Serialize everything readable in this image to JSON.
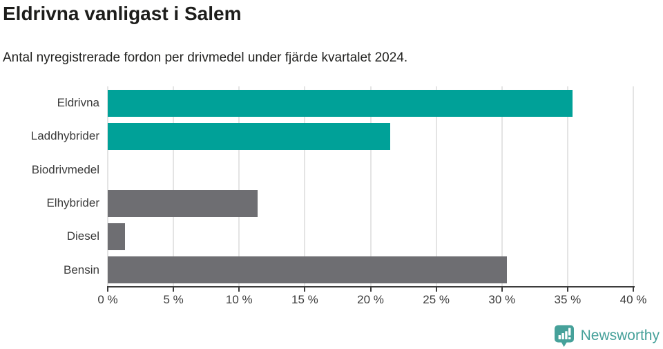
{
  "header": {
    "title": "Eldrivna vanligast i Salem",
    "subtitle": "Antal nyregistrerade fordon per drivmedel under fjärde kvartalet 2024."
  },
  "chart_data": {
    "type": "bar",
    "orientation": "horizontal",
    "title": "Eldrivna vanligast i Salem",
    "subtitle": "Antal nyregistrerade fordon per drivmedel under fjärde kvartalet 2024.",
    "categories": [
      "Eldrivna",
      "Laddhybrider",
      "Biodrivmedel",
      "Elhybrider",
      "Diesel",
      "Bensin"
    ],
    "values": [
      35.4,
      21.5,
      0,
      11.4,
      1.3,
      30.4
    ],
    "unit": "%",
    "bar_colors": [
      "#00a198",
      "#00a198",
      "#00a198",
      "#6e6e72",
      "#6e6e72",
      "#6e6e72"
    ],
    "xlim": [
      0,
      40
    ],
    "x_ticks": [
      0,
      5,
      10,
      15,
      20,
      25,
      30,
      35,
      40
    ],
    "x_tick_labels": [
      "0 %",
      "5 %",
      "10 %",
      "15 %",
      "20 %",
      "25 %",
      "30 %",
      "35 %",
      "40 %"
    ],
    "grid": "vertical",
    "legend": "none",
    "colors": {
      "accent_teal": "#00a198",
      "neutral_gray": "#6e6e72",
      "gridline": "#e4e4e4",
      "axis": "#3c3c3c",
      "text": "#3b3b3b"
    }
  },
  "branding": {
    "logo_text": "Newsworthy",
    "logo_color": "#46a19a",
    "icon": "bar-chart-speech-bubble"
  }
}
